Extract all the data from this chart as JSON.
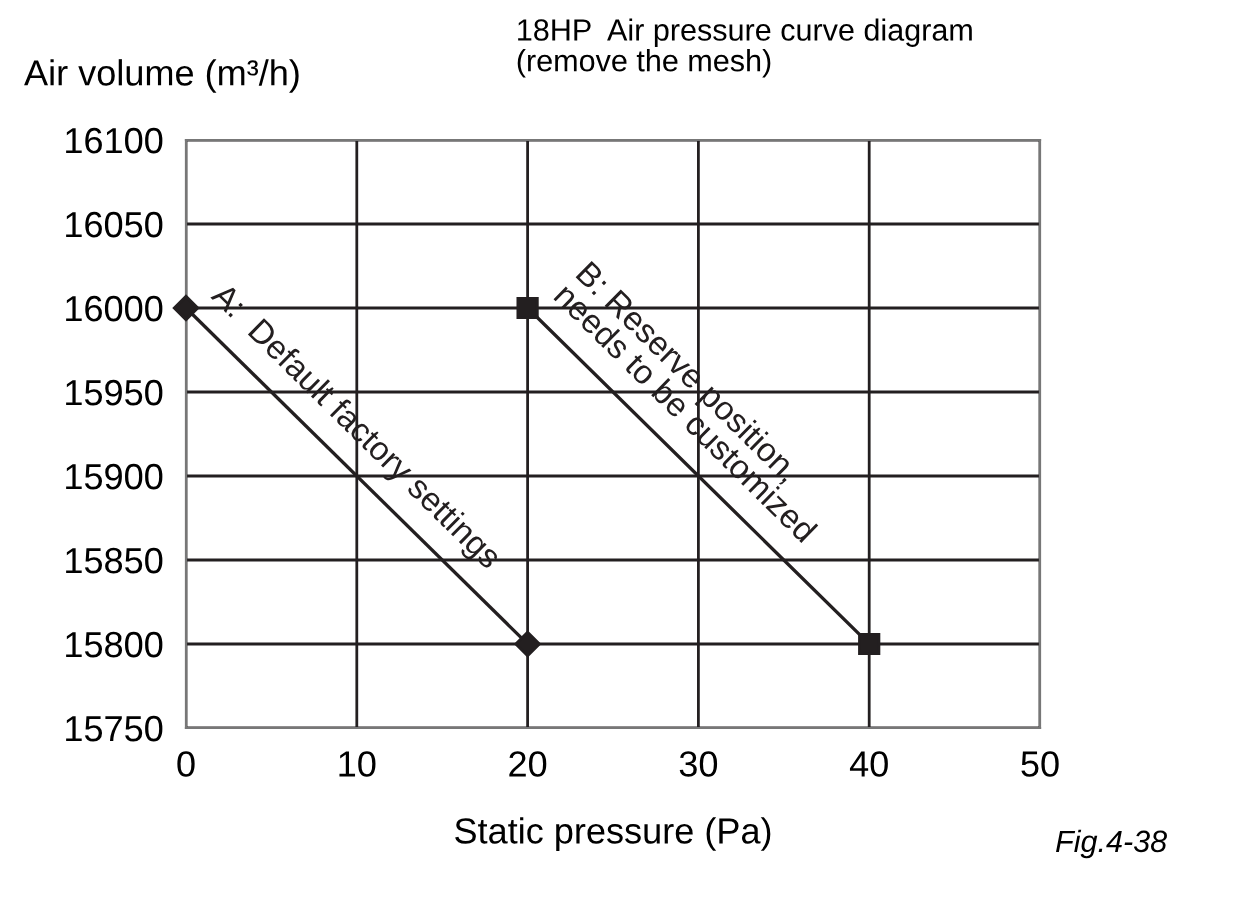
{
  "chart_data": {
    "type": "line",
    "title": "18HP  Air pressure curve diagram\n(remove the mesh)",
    "ylabel": "Air volume (m³/h)",
    "xlabel": "Static pressure (Pa)",
    "annotations": [
      "Fig.4-38"
    ],
    "series": [
      {
        "name": "A:  Default factory settings",
        "color": "#231f20",
        "marker": "diamond",
        "x": [
          0,
          20
        ],
        "values": [
          16000,
          15800
        ]
      },
      {
        "name": "B: Reserve position,\nneeds to be customized",
        "color": "#231f20",
        "marker": "square",
        "x": [
          20,
          40
        ],
        "values": [
          16000,
          15800
        ]
      }
    ],
    "xlim": [
      0,
      50
    ],
    "xticks": [
      0,
      10,
      20,
      30,
      40,
      50
    ],
    "ylim": [
      15750,
      16100
    ],
    "yticks": [
      15750,
      15800,
      15850,
      15900,
      15950,
      16000,
      16050,
      16100
    ],
    "grid": true,
    "line_style": "solid"
  }
}
